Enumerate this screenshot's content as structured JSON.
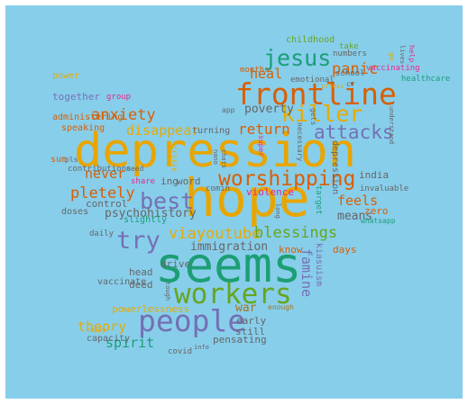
{
  "words": [
    {
      "text": "depression",
      "color": "#e8a500"
    },
    {
      "text": "hope",
      "color": "#e8a500"
    },
    {
      "text": "seems",
      "color": "#1d9e74"
    },
    {
      "text": "frontline",
      "color": "#d95f02"
    },
    {
      "text": "people",
      "color": "#7570b3"
    },
    {
      "text": "workers",
      "color": "#66a61e"
    },
    {
      "text": "worshipping",
      "color": "#d95f02"
    },
    {
      "text": "killer",
      "color": "#e6ab02"
    },
    {
      "text": "jesus",
      "color": "#1b9e77"
    },
    {
      "text": "best",
      "color": "#7570b3"
    },
    {
      "text": "try",
      "color": "#7570b3"
    },
    {
      "text": "attacks",
      "color": "#7570b3"
    },
    {
      "text": "panic",
      "color": "#d95f02"
    },
    {
      "text": "anxiety",
      "color": "#d95f02"
    },
    {
      "text": "pletely",
      "color": "#d95f02"
    },
    {
      "text": "viayoutube",
      "color": "#e6ab02"
    },
    {
      "text": "blessings",
      "color": "#66a61e"
    },
    {
      "text": "return",
      "color": "#d95f02"
    },
    {
      "text": "disappear",
      "color": "#e6ab02"
    },
    {
      "text": "never",
      "color": "#d95f02"
    },
    {
      "text": "heal",
      "color": "#d95f02"
    },
    {
      "text": "poverty",
      "color": "#666666"
    },
    {
      "text": "feels",
      "color": "#d95f02"
    },
    {
      "text": "means",
      "color": "#666666"
    },
    {
      "text": "psychohistory",
      "color": "#666666"
    },
    {
      "text": "immigration",
      "color": "#666666"
    },
    {
      "text": "theory",
      "color": "#e6ab02"
    },
    {
      "text": "spirit",
      "color": "#1b9e77"
    },
    {
      "text": "war",
      "color": "#a6761d"
    },
    {
      "text": "famine",
      "color": "#7570b3"
    },
    {
      "text": "together",
      "color": "#7570b3"
    },
    {
      "text": "powerlessness",
      "color": "#e6ab02"
    },
    {
      "text": "pensating",
      "color": "#666666"
    },
    {
      "text": "ing",
      "color": "#666666"
    },
    {
      "text": "word",
      "color": "#666666"
    },
    {
      "text": "drive",
      "color": "#666666"
    },
    {
      "text": "head",
      "color": "#666666"
    },
    {
      "text": "deed",
      "color": "#666666"
    },
    {
      "text": "early",
      "color": "#666666"
    },
    {
      "text": "still",
      "color": "#666666"
    },
    {
      "text": "india",
      "color": "#666666"
    },
    {
      "text": "zero",
      "color": "#d95f02"
    },
    {
      "text": "know",
      "color": "#d95f02"
    },
    {
      "text": "days",
      "color": "#d95f02"
    },
    {
      "text": "control",
      "color": "#666666"
    },
    {
      "text": "violence",
      "color": "#e7298a"
    },
    {
      "text": "childhood",
      "color": "#66a61e"
    },
    {
      "text": "power",
      "color": "#e6ab02"
    },
    {
      "text": "group",
      "color": "#e7298a"
    },
    {
      "text": "administering",
      "color": "#d95f02"
    },
    {
      "text": "speaking",
      "color": "#d95f02"
    },
    {
      "text": "turning",
      "color": "#666666"
    },
    {
      "text": "sum",
      "color": "#d95f02"
    },
    {
      "text": "contributions",
      "color": "#666666"
    },
    {
      "text": "need",
      "color": "#666666"
    },
    {
      "text": "doses",
      "color": "#666666"
    },
    {
      "text": "slightly",
      "color": "#1b9e77"
    },
    {
      "text": "share",
      "color": "#e7298a"
    },
    {
      "text": "daily",
      "color": "#666666"
    },
    {
      "text": "vaccinate",
      "color": "#666666"
    },
    {
      "text": "capacity",
      "color": "#666666"
    },
    {
      "text": "covid",
      "color": "#666666"
    },
    {
      "text": "info",
      "color": "#666666"
    },
    {
      "text": "emotional",
      "color": "#666666"
    },
    {
      "text": "months",
      "color": "#d95f02"
    },
    {
      "text": "numbers",
      "color": "#666666"
    },
    {
      "text": "take",
      "color": "#66a61e"
    },
    {
      "text": "school",
      "color": "#666666"
    },
    {
      "text": "vaccinating",
      "color": "#e7298a"
    },
    {
      "text": "healthcare",
      "color": "#1b9e77"
    },
    {
      "text": "cr",
      "color": "#666666"
    },
    {
      "text": "app",
      "color": "#666666"
    },
    {
      "text": "comin",
      "color": "#666666"
    },
    {
      "text": "invaluable",
      "color": "#666666"
    },
    {
      "text": "target",
      "color": "#1b9e77"
    },
    {
      "text": "whatsapp",
      "color": "#1b9e77"
    },
    {
      "text": "enough",
      "color": "#a6761d"
    },
    {
      "text": "depression",
      "color": "#666666"
    },
    {
      "text": "kiasuism",
      "color": "#7570b3"
    },
    {
      "text": "necessary",
      "color": "#666666"
    },
    {
      "text": "gets",
      "color": "#666666"
    },
    {
      "text": "super",
      "color": "#e7298a"
    },
    {
      "text": "understand",
      "color": "#666666"
    },
    {
      "text": "nano",
      "color": "#666666"
    },
    {
      "text": "chats",
      "color": "#666666"
    },
    {
      "text": "crisis",
      "color": "#e6ab02"
    },
    {
      "text": "stress",
      "color": "#e6ab02"
    },
    {
      "text": "help",
      "color": "#e7298a"
    },
    {
      "text": "pls",
      "color": "#666666"
    },
    {
      "text": "go",
      "color": "#e6ab02"
    },
    {
      "text": "lives",
      "color": "#666666"
    },
    {
      "text": "tough",
      "color": "#666666"
    },
    {
      "text": "happy",
      "color": "#e6ab02"
    },
    {
      "text": "long",
      "color": "#666666"
    }
  ]
}
